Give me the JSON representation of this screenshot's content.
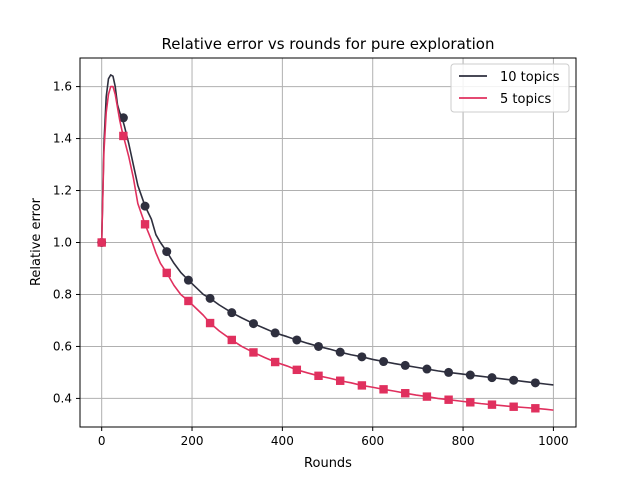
{
  "chart_data": {
    "type": "line",
    "title": "Relative error vs rounds for pure exploration",
    "xlabel": "Rounds",
    "ylabel": "Relative error",
    "xlim": [
      -48,
      1050
    ],
    "ylim": [
      0.29,
      1.71
    ],
    "xticks": [
      0,
      200,
      400,
      600,
      800,
      1000
    ],
    "yticks": [
      0.4,
      0.6,
      0.8,
      1.0,
      1.2,
      1.4,
      1.6
    ],
    "xtick_labels": [
      "0",
      "200",
      "400",
      "600",
      "800",
      "1000"
    ],
    "ytick_labels": [
      "0.4",
      "0.6",
      "0.8",
      "1.0",
      "1.2",
      "1.4",
      "1.6"
    ],
    "grid": true,
    "legend_position": "top-right",
    "series": [
      {
        "name": "10 topics",
        "color": "#2e2f3e",
        "marker": "circle",
        "x": [
          0,
          5,
          10,
          15,
          20,
          25,
          30,
          35,
          40,
          45,
          50,
          60,
          70,
          80,
          90,
          96,
          110,
          120,
          130,
          144,
          160,
          175,
          192,
          210,
          225,
          240,
          260,
          288,
          310,
          336,
          360,
          384,
          410,
          432,
          456,
          480,
          504,
          528,
          552,
          576,
          600,
          624,
          648,
          672,
          696,
          720,
          744,
          768,
          792,
          816,
          840,
          864,
          888,
          912,
          936,
          960,
          984,
          1000
        ],
        "y": [
          1.0,
          1.38,
          1.56,
          1.63,
          1.645,
          1.64,
          1.6,
          1.53,
          1.5,
          1.48,
          1.45,
          1.38,
          1.3,
          1.22,
          1.17,
          1.14,
          1.09,
          1.03,
          1.0,
          0.965,
          0.92,
          0.885,
          0.855,
          0.825,
          0.8,
          0.785,
          0.76,
          0.73,
          0.71,
          0.688,
          0.67,
          0.652,
          0.638,
          0.625,
          0.612,
          0.6,
          0.59,
          0.578,
          0.568,
          0.56,
          0.55,
          0.542,
          0.534,
          0.527,
          0.52,
          0.513,
          0.506,
          0.5,
          0.495,
          0.49,
          0.485,
          0.48,
          0.475,
          0.47,
          0.465,
          0.46,
          0.455,
          0.452
        ],
        "markers_x": [
          0,
          48,
          96,
          144,
          192,
          240,
          288,
          336,
          384,
          432,
          480,
          528,
          576,
          624,
          672,
          720,
          768,
          816,
          864,
          912,
          960
        ],
        "markers_y": [
          1.0,
          1.48,
          1.14,
          0.965,
          0.855,
          0.785,
          0.73,
          0.688,
          0.652,
          0.625,
          0.6,
          0.578,
          0.56,
          0.542,
          0.527,
          0.513,
          0.5,
          0.49,
          0.48,
          0.47,
          0.46
        ]
      },
      {
        "name": "5 topics",
        "color": "#e0305e",
        "marker": "square",
        "x": [
          0,
          5,
          10,
          15,
          20,
          25,
          30,
          35,
          40,
          45,
          48,
          60,
          70,
          80,
          90,
          96,
          110,
          120,
          130,
          144,
          160,
          175,
          192,
          210,
          225,
          240,
          260,
          288,
          310,
          336,
          360,
          384,
          410,
          432,
          456,
          480,
          504,
          528,
          552,
          576,
          600,
          624,
          648,
          672,
          696,
          720,
          744,
          768,
          792,
          816,
          840,
          864,
          888,
          912,
          936,
          960,
          984,
          1000
        ],
        "y": [
          1.0,
          1.35,
          1.5,
          1.57,
          1.6,
          1.6,
          1.57,
          1.52,
          1.47,
          1.43,
          1.41,
          1.33,
          1.25,
          1.15,
          1.1,
          1.07,
          1.01,
          0.96,
          0.92,
          0.883,
          0.835,
          0.8,
          0.775,
          0.745,
          0.72,
          0.69,
          0.66,
          0.625,
          0.6,
          0.577,
          0.558,
          0.54,
          0.525,
          0.51,
          0.498,
          0.487,
          0.478,
          0.468,
          0.46,
          0.45,
          0.443,
          0.435,
          0.428,
          0.42,
          0.413,
          0.407,
          0.4,
          0.395,
          0.39,
          0.385,
          0.38,
          0.376,
          0.372,
          0.368,
          0.365,
          0.362,
          0.358,
          0.355
        ],
        "markers_x": [
          0,
          48,
          96,
          144,
          192,
          240,
          288,
          336,
          384,
          432,
          480,
          528,
          576,
          624,
          672,
          720,
          768,
          816,
          864,
          912,
          960
        ],
        "markers_y": [
          1.0,
          1.41,
          1.07,
          0.883,
          0.775,
          0.69,
          0.625,
          0.577,
          0.54,
          0.51,
          0.487,
          0.468,
          0.45,
          0.435,
          0.42,
          0.407,
          0.395,
          0.385,
          0.376,
          0.368,
          0.362
        ]
      }
    ]
  }
}
